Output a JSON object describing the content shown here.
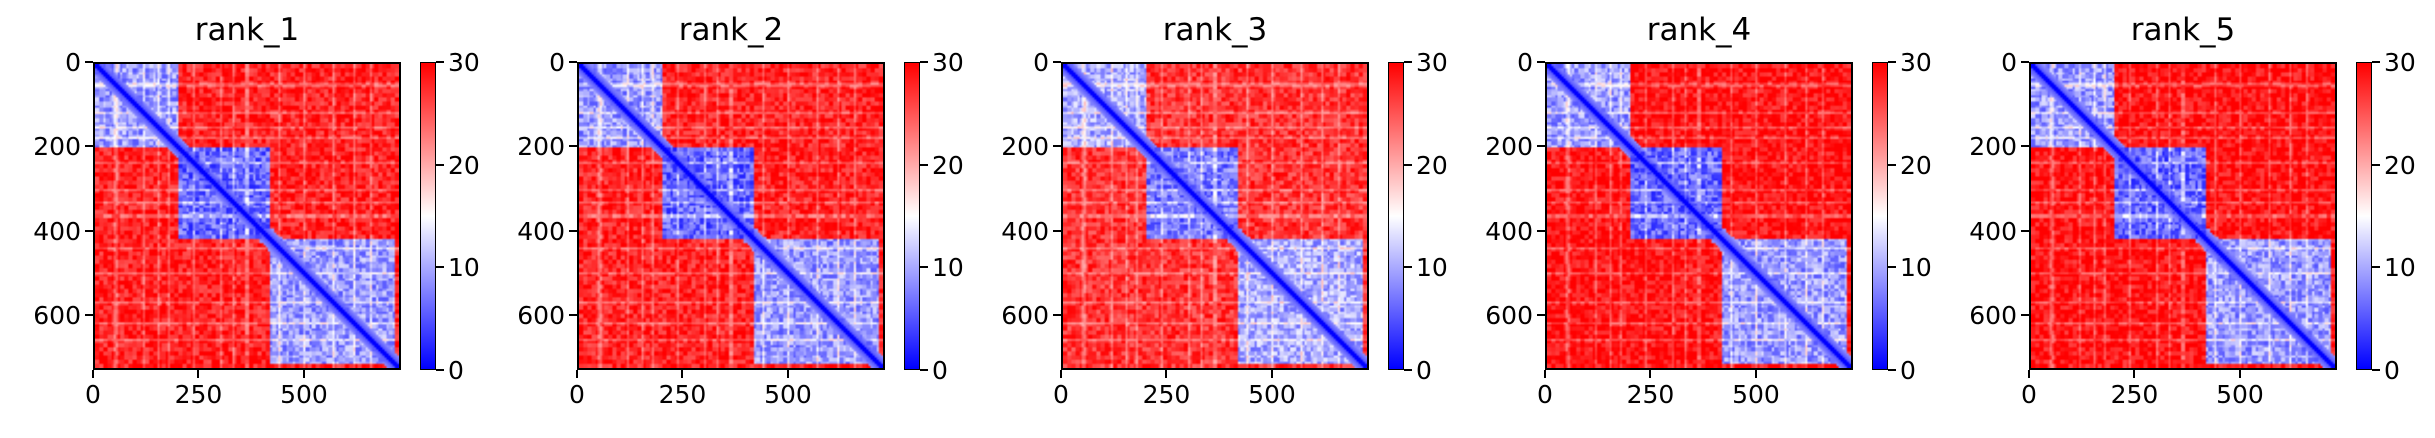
{
  "figure": {
    "colors": {
      "low": "#0000ff",
      "mid": "#ffffff",
      "high": "#ff0000"
    },
    "colormap": "bwr"
  },
  "chart_data": [
    {
      "type": "heatmap",
      "title": "rank_1",
      "colorbar": {
        "range": [
          0,
          30
        ],
        "ticks": [
          0,
          10,
          20,
          30
        ]
      },
      "xlim": [
        0,
        730
      ],
      "ylim": [
        730,
        0
      ],
      "xticks": [
        0,
        250,
        500
      ],
      "yticks": [
        0,
        200,
        400,
        600
      ],
      "blocks": [
        [
          0,
          200,
          9
        ],
        [
          200,
          420,
          6
        ],
        [
          420,
          720,
          9
        ]
      ],
      "off_diagonal": 28,
      "diagonal": 0
    },
    {
      "type": "heatmap",
      "title": "rank_2",
      "colorbar": {
        "range": [
          0,
          30
        ],
        "ticks": [
          0,
          10,
          20,
          30
        ]
      },
      "xlim": [
        0,
        730
      ],
      "ylim": [
        730,
        0
      ],
      "xticks": [
        0,
        250,
        500
      ],
      "yticks": [
        0,
        200,
        400,
        600
      ],
      "blocks": [
        [
          0,
          200,
          9
        ],
        [
          200,
          420,
          6
        ],
        [
          420,
          720,
          9
        ]
      ],
      "off_diagonal": 28,
      "diagonal": 0
    },
    {
      "type": "heatmap",
      "title": "rank_3",
      "colorbar": {
        "range": [
          0,
          30
        ],
        "ticks": [
          0,
          10,
          20,
          30
        ]
      },
      "xlim": [
        0,
        730
      ],
      "ylim": [
        730,
        0
      ],
      "xticks": [
        0,
        250,
        500
      ],
      "yticks": [
        0,
        200,
        400,
        600
      ],
      "blocks": [
        [
          0,
          200,
          10
        ],
        [
          200,
          420,
          7
        ],
        [
          420,
          720,
          10
        ]
      ],
      "off_diagonal": 27,
      "diagonal": 0
    },
    {
      "type": "heatmap",
      "title": "rank_4",
      "colorbar": {
        "range": [
          0,
          30
        ],
        "ticks": [
          0,
          10,
          20,
          30
        ]
      },
      "xlim": [
        0,
        730
      ],
      "ylim": [
        730,
        0
      ],
      "xticks": [
        0,
        250,
        500
      ],
      "yticks": [
        0,
        200,
        400,
        600
      ],
      "blocks": [
        [
          0,
          200,
          9
        ],
        [
          200,
          420,
          6
        ],
        [
          420,
          720,
          9
        ]
      ],
      "off_diagonal": 29,
      "diagonal": 0
    },
    {
      "type": "heatmap",
      "title": "rank_5",
      "colorbar": {
        "range": [
          0,
          30
        ],
        "ticks": [
          0,
          10,
          20,
          30
        ]
      },
      "xlim": [
        0,
        730
      ],
      "ylim": [
        730,
        0
      ],
      "xticks": [
        0,
        250,
        500
      ],
      "yticks": [
        0,
        200,
        400,
        600
      ],
      "blocks": [
        [
          0,
          200,
          9
        ],
        [
          200,
          420,
          6
        ],
        [
          420,
          720,
          9
        ]
      ],
      "off_diagonal": 29,
      "diagonal": 0
    }
  ]
}
